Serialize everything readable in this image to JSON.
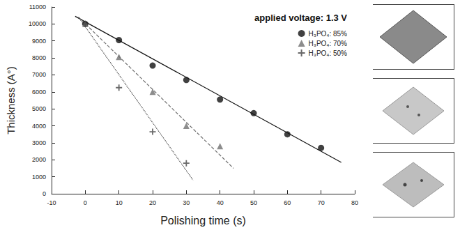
{
  "chart_data": {
    "type": "scatter",
    "annotation": "applied voltage: 1.3 V",
    "x_label": "Polishing time (s)",
    "y_label": "Thickness (A°)",
    "xlim": [
      -10,
      80
    ],
    "xticks": [
      -10,
      0,
      10,
      20,
      30,
      40,
      50,
      60,
      70,
      80
    ],
    "ylim": [
      0,
      11000
    ],
    "yticks": [
      0,
      1000,
      2000,
      3000,
      4000,
      5000,
      6000,
      7000,
      8000,
      9000,
      10000,
      11000
    ],
    "legend": "upper right",
    "grid": false,
    "series": [
      {
        "name": "H₃PO₄: 85%",
        "color": "#111111",
        "marker": "circle",
        "line_style": "solid",
        "x": [
          0,
          10,
          20,
          30,
          40,
          50,
          60,
          70
        ],
        "values": [
          10000,
          9050,
          7550,
          6700,
          5550,
          4750,
          3500,
          2700
        ],
        "fit_x": [
          -3,
          76
        ],
        "fit_y": [
          10450,
          1850
        ]
      },
      {
        "name": "H₃PO₄: 70%",
        "color": "#707070",
        "marker": "triangle",
        "line_style": "dashed",
        "x": [
          0,
          10,
          20,
          30,
          40
        ],
        "values": [
          10000,
          8050,
          6000,
          4000,
          2800
        ],
        "fit_x": [
          -2,
          44
        ],
        "fit_y": [
          10400,
          1500
        ]
      },
      {
        "name": "H₃PO₄: 50%",
        "color": "#444444",
        "marker": "plus",
        "line_style": "dotted",
        "x": [
          0,
          10,
          20,
          30
        ],
        "values": [
          10000,
          6250,
          3650,
          1800
        ],
        "fit_x": [
          -2,
          32
        ],
        "fit_y": [
          10400,
          800
        ]
      }
    ]
  }
}
